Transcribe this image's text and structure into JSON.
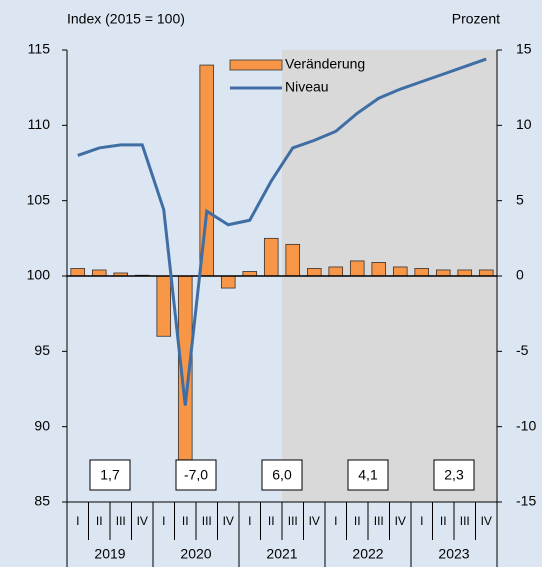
{
  "chart_data": {
    "type": "bar-line",
    "y_label": "Index (2015 = 100)",
    "y2_label": "Prozent",
    "categories": [
      "I",
      "II",
      "III",
      "IV",
      "I",
      "II",
      "III",
      "IV",
      "I",
      "II",
      "III",
      "IV",
      "I",
      "II",
      "III",
      "IV",
      "I",
      "II",
      "III",
      "IV"
    ],
    "years": [
      "2019",
      "2020",
      "2021",
      "2022",
      "2023"
    ],
    "series": [
      {
        "name": "Veränderung",
        "type": "bar",
        "axis": "y2",
        "color": "#f79646",
        "values": [
          0.5,
          0.4,
          0.2,
          0.05,
          -4.0,
          -12.2,
          14.0,
          -0.8,
          0.3,
          2.5,
          2.1,
          0.5,
          0.6,
          1.0,
          0.9,
          0.6,
          0.5,
          0.4,
          0.4,
          0.4
        ]
      },
      {
        "name": "Niveau",
        "type": "line",
        "color": "#3f6ea5",
        "values": [
          108.0,
          108.5,
          108.7,
          108.7,
          104.4,
          91.4,
          104.3,
          103.4,
          103.7,
          106.3,
          108.5,
          109.0,
          109.6,
          110.8,
          111.8,
          112.4,
          112.9,
          113.4,
          113.9,
          114.4
        ]
      }
    ],
    "annual": {
      "values": [
        1.7,
        -7.0,
        6.0,
        4.1,
        2.3
      ],
      "value_labels": [
        "1,7",
        "-7,0",
        "6,0",
        "4,1",
        "2,3"
      ]
    },
    "shaded_from_category": 10,
    "ylim": [
      85,
      115
    ],
    "yticks": [
      85,
      90,
      95,
      100,
      105,
      110,
      115
    ],
    "y2lim": [
      -15,
      15
    ],
    "y2ticks": [
      -15,
      -10,
      -5,
      0,
      5,
      10,
      15
    ]
  }
}
